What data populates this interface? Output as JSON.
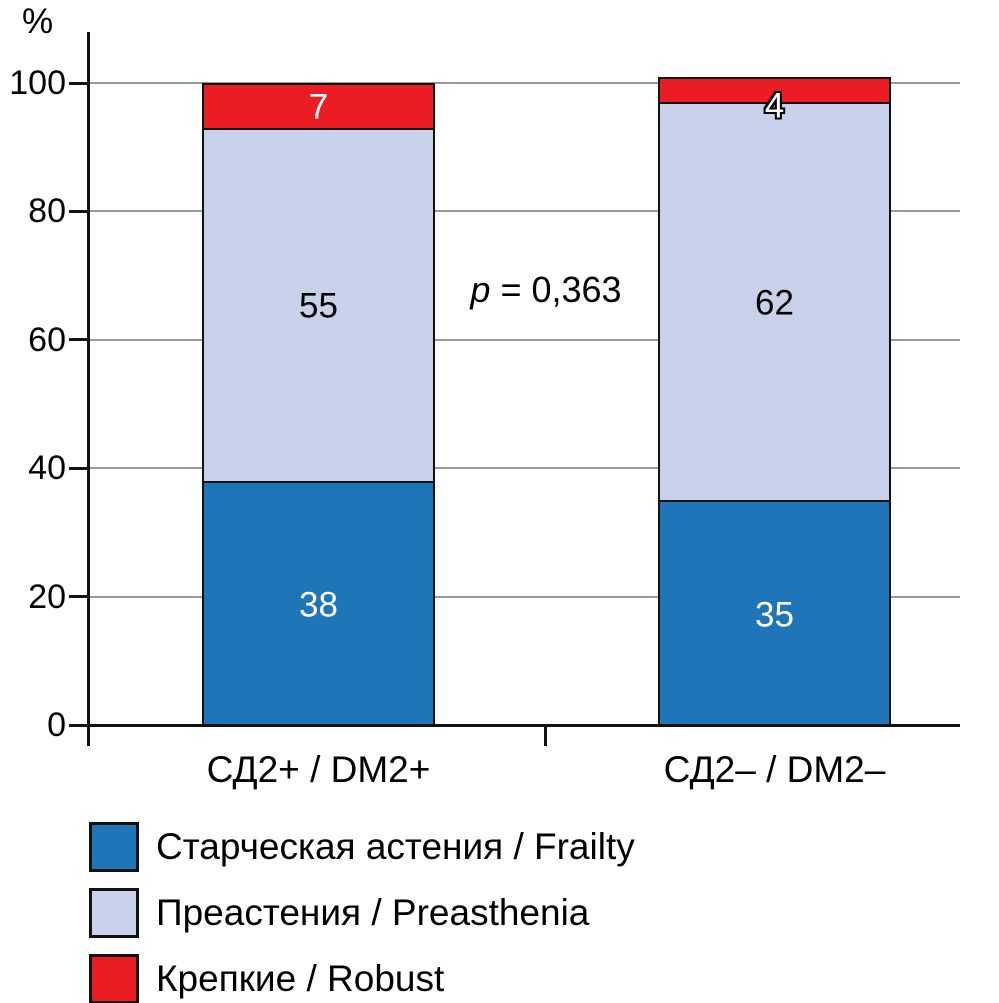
{
  "figure": {
    "background": "#ffffff",
    "unit_label": "%",
    "annotation": {
      "text": "p = 0,363",
      "symbol": "p",
      "rest": " = 0,363"
    }
  },
  "chart_data": {
    "type": "bar",
    "stacked": true,
    "title": "",
    "xlabel": "",
    "ylabel": "%",
    "ylim": [
      0,
      100
    ],
    "yticks": [
      0,
      20,
      40,
      60,
      80,
      100
    ],
    "grid": true,
    "legend_position": "bottom",
    "categories": [
      "СД2+ / DM2+",
      "СД2– / DM2–"
    ],
    "series": [
      {
        "name": "Старческая астения / Frailty",
        "color": "#1E75B7",
        "values": [
          38,
          35
        ],
        "label_color": "#ffffff"
      },
      {
        "name": "Преастения / Preasthenia",
        "color": "#C7D1E9",
        "values": [
          55,
          62
        ],
        "label_color": "#000000"
      },
      {
        "name": "Крепкие / Robust",
        "color": "#EC1C24",
        "values": [
          7,
          4
        ],
        "label_color": "#ffffff"
      }
    ],
    "annotation": "p = 0,363",
    "colors": {
      "grid": "#999999",
      "axis": "#111111"
    }
  }
}
